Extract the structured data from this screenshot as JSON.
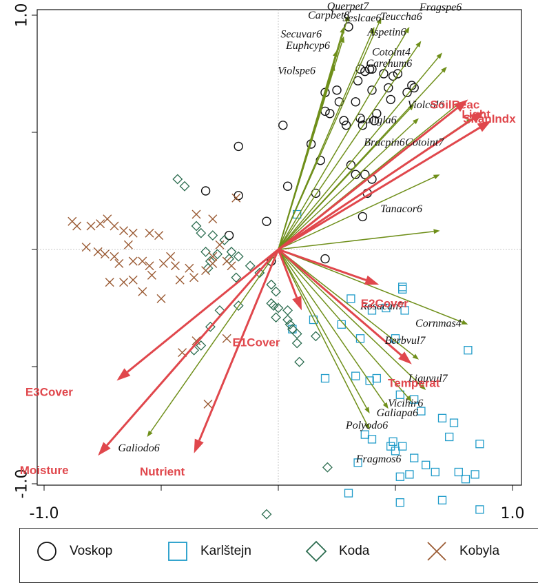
{
  "chart_data": {
    "type": "scatter",
    "xlim": [
      -1.0,
      1.0
    ],
    "ylim": [
      -1.0,
      1.0
    ],
    "x_ticks": [
      -1.0,
      1.0
    ],
    "y_ticks": [
      1.0,
      -1.0
    ],
    "x_tick_labels": [
      "-1.0",
      "1.0"
    ],
    "y_tick_labels": [
      "1.0",
      "-1.0"
    ],
    "colors": {
      "voskop": "#111111",
      "karlstejn": "#1f9bc9",
      "koda": "#2a6b4e",
      "kobyla": "#9a5a33",
      "env_arrow": "#e0474c",
      "species_arrow": "#6f8f1a"
    },
    "env_vectors": [
      {
        "label": "ShanIndx",
        "x": 0.91,
        "y": 0.55
      },
      {
        "label": "Light",
        "x": 0.88,
        "y": 0.59
      },
      {
        "label": "SoilReac",
        "x": 0.81,
        "y": 0.64
      },
      {
        "label": "E2Cover",
        "x": 0.43,
        "y": -0.15
      },
      {
        "label": "E1Cover",
        "x": 0.1,
        "y": -0.26
      },
      {
        "label": "Temperat",
        "x": 0.57,
        "y": -0.49
      },
      {
        "label": "E3Cover",
        "x": -0.69,
        "y": -0.56
      },
      {
        "label": "Moisture",
        "x": -0.77,
        "y": -0.88
      },
      {
        "label": "Nutrient",
        "x": -0.36,
        "y": -0.87
      }
    ],
    "species_vectors": [
      {
        "label": "Querpet7",
        "x": 0.3,
        "y": 1.0
      },
      {
        "label": "Fragspe6",
        "x": 0.44,
        "y": 0.99
      },
      {
        "label": "Carpbet8",
        "x": 0.28,
        "y": 0.95
      },
      {
        "label": "Seslcae6",
        "x": 0.41,
        "y": 0.95
      },
      {
        "label": "Teuccha6",
        "x": 0.56,
        "y": 0.95
      },
      {
        "label": "Secuvar6",
        "x": 0.28,
        "y": 0.91
      },
      {
        "label": "Aspetin6",
        "x": 0.61,
        "y": 0.89
      },
      {
        "label": "Euphcyp6",
        "x": 0.25,
        "y": 0.85
      },
      {
        "label": "Cotoint4",
        "x": 0.7,
        "y": 0.84
      },
      {
        "label": "Violspe6",
        "x": 0.24,
        "y": 0.79
      },
      {
        "label": "Carehum6",
        "x": 0.72,
        "y": 0.78
      },
      {
        "label": "Galigla6",
        "x": 0.58,
        "y": 0.62
      },
      {
        "label": "Violcol6",
        "x": 0.78,
        "y": 0.63
      },
      {
        "label": "Bracpin6",
        "x": 0.6,
        "y": 0.56
      },
      {
        "label": "Cotoint7",
        "x": 0.83,
        "y": 0.56
      },
      {
        "label": "Tanacor6",
        "x": 0.69,
        "y": 0.32
      },
      {
        "label": "Rosacan7",
        "x": 0.69,
        "y": 0.08
      },
      {
        "label": "Cornmas4",
        "x": 0.81,
        "y": -0.32
      },
      {
        "label": "Berbvul7",
        "x": 0.6,
        "y": -0.47
      },
      {
        "label": "Liguvul7",
        "x": 0.63,
        "y": -0.6
      },
      {
        "label": "Vicihir6",
        "x": 0.57,
        "y": -0.65
      },
      {
        "label": "Galiapa6",
        "x": 0.47,
        "y": -0.68
      },
      {
        "label": "Polyodo6",
        "x": 0.39,
        "y": -0.7
      },
      {
        "label": "Fragmos6",
        "x": 0.39,
        "y": -0.77
      },
      {
        "label": "Galiodo6",
        "x": -0.56,
        "y": -0.8
      }
    ],
    "samples": {
      "voskop": [
        [
          0.3,
          0.95
        ],
        [
          0.35,
          0.77
        ],
        [
          0.37,
          0.76
        ],
        [
          0.39,
          0.77
        ],
        [
          0.4,
          0.77
        ],
        [
          0.34,
          0.72
        ],
        [
          0.45,
          0.75
        ],
        [
          0.49,
          0.74
        ],
        [
          0.51,
          0.75
        ],
        [
          0.47,
          0.69
        ],
        [
          0.4,
          0.68
        ],
        [
          0.33,
          0.63
        ],
        [
          0.25,
          0.68
        ],
        [
          0.26,
          0.63
        ],
        [
          0.2,
          0.67
        ],
        [
          0.48,
          0.64
        ],
        [
          0.55,
          0.67
        ],
        [
          0.58,
          0.69
        ],
        [
          0.57,
          0.7
        ],
        [
          0.42,
          0.58
        ],
        [
          0.41,
          0.55
        ],
        [
          0.35,
          0.56
        ],
        [
          0.28,
          0.55
        ],
        [
          0.2,
          0.59
        ],
        [
          0.22,
          0.58
        ],
        [
          0.36,
          0.53
        ],
        [
          0.29,
          0.53
        ],
        [
          0.02,
          0.53
        ],
        [
          -0.17,
          0.44
        ],
        [
          0.14,
          0.45
        ],
        [
          0.18,
          0.38
        ],
        [
          0.31,
          0.36
        ],
        [
          0.33,
          0.32
        ],
        [
          0.37,
          0.32
        ],
        [
          0.04,
          0.27
        ],
        [
          0.16,
          0.24
        ],
        [
          0.38,
          0.24
        ],
        [
          -0.17,
          0.23
        ],
        [
          -0.31,
          0.25
        ],
        [
          0.4,
          0.3
        ],
        [
          -0.05,
          0.12
        ],
        [
          -0.21,
          0.06
        ],
        [
          0.36,
          0.14
        ],
        [
          -0.03,
          -0.05
        ],
        [
          0.2,
          -0.04
        ]
      ],
      "karlstejn": [
        [
          0.08,
          0.15
        ],
        [
          0.53,
          -0.16
        ],
        [
          0.53,
          -0.17
        ],
        [
          0.31,
          -0.21
        ],
        [
          0.46,
          -0.25
        ],
        [
          0.4,
          -0.26
        ],
        [
          0.54,
          -0.26
        ],
        [
          0.06,
          -0.34
        ],
        [
          0.15,
          -0.3
        ],
        [
          0.27,
          -0.32
        ],
        [
          0.35,
          -0.38
        ],
        [
          0.5,
          -0.38
        ],
        [
          0.81,
          -0.43
        ],
        [
          0.2,
          -0.55
        ],
        [
          0.39,
          -0.56
        ],
        [
          0.33,
          -0.54
        ],
        [
          0.42,
          -0.55
        ],
        [
          0.52,
          -0.62
        ],
        [
          0.58,
          -0.64
        ],
        [
          0.61,
          -0.69
        ],
        [
          0.7,
          -0.72
        ],
        [
          0.75,
          -0.74
        ],
        [
          0.73,
          -0.8
        ],
        [
          0.37,
          -0.79
        ],
        [
          0.4,
          -0.81
        ],
        [
          0.48,
          -0.84
        ],
        [
          0.49,
          -0.82
        ],
        [
          0.5,
          -0.86
        ],
        [
          0.53,
          -0.84
        ],
        [
          0.58,
          -0.89
        ],
        [
          0.63,
          -0.92
        ],
        [
          0.67,
          -0.95
        ],
        [
          0.34,
          -0.91
        ],
        [
          0.52,
          -0.97
        ],
        [
          0.56,
          -0.96
        ],
        [
          0.77,
          -0.95
        ],
        [
          0.8,
          -0.98
        ],
        [
          0.84,
          -0.96
        ],
        [
          0.7,
          -1.07
        ],
        [
          0.86,
          -1.11
        ],
        [
          0.52,
          -1.08
        ],
        [
          0.3,
          -1.04
        ],
        [
          0.86,
          -0.83
        ]
      ],
      "koda": [
        [
          -0.4,
          0.27
        ],
        [
          -0.35,
          0.1
        ],
        [
          -0.33,
          0.07
        ],
        [
          -0.28,
          0.06
        ],
        [
          -0.23,
          0.04
        ],
        [
          -0.2,
          -0.01
        ],
        [
          -0.17,
          -0.03
        ],
        [
          -0.31,
          -0.01
        ],
        [
          -0.26,
          -0.02
        ],
        [
          -0.21,
          -0.04
        ],
        [
          -0.29,
          -0.05
        ],
        [
          -0.3,
          -0.08
        ],
        [
          -0.18,
          -0.12
        ],
        [
          -0.12,
          -0.07
        ],
        [
          -0.08,
          -0.1
        ],
        [
          -0.03,
          -0.15
        ],
        [
          -0.01,
          -0.18
        ],
        [
          -0.03,
          -0.23
        ],
        [
          -0.02,
          -0.24
        ],
        [
          0.04,
          -0.26
        ],
        [
          0.0,
          -0.25
        ],
        [
          -0.01,
          -0.29
        ],
        [
          0.04,
          -0.3
        ],
        [
          0.05,
          -0.32
        ],
        [
          0.06,
          -0.34
        ],
        [
          0.08,
          -0.36
        ],
        [
          0.16,
          -0.37
        ],
        [
          -0.17,
          -0.24
        ],
        [
          -0.25,
          -0.26
        ],
        [
          -0.29,
          -0.33
        ],
        [
          -0.33,
          -0.41
        ],
        [
          -0.36,
          -0.43
        ],
        [
          0.08,
          -0.4
        ],
        [
          0.09,
          -0.48
        ],
        [
          0.21,
          -0.93
        ],
        [
          -0.05,
          -1.13
        ],
        [
          -0.43,
          0.3
        ]
      ],
      "kobyla": [
        [
          -0.88,
          0.12
        ],
        [
          -0.86,
          0.1
        ],
        [
          -0.8,
          0.1
        ],
        [
          -0.76,
          0.11
        ],
        [
          -0.73,
          0.13
        ],
        [
          -0.7,
          0.1
        ],
        [
          -0.66,
          0.08
        ],
        [
          -0.62,
          0.07
        ],
        [
          -0.55,
          0.07
        ],
        [
          -0.51,
          0.06
        ],
        [
          -0.82,
          0.01
        ],
        [
          -0.77,
          -0.01
        ],
        [
          -0.74,
          -0.02
        ],
        [
          -0.7,
          -0.03
        ],
        [
          -0.68,
          -0.06
        ],
        [
          -0.62,
          -0.05
        ],
        [
          -0.58,
          -0.05
        ],
        [
          -0.55,
          -0.07
        ],
        [
          -0.49,
          -0.06
        ],
        [
          -0.44,
          -0.07
        ],
        [
          -0.38,
          -0.08
        ],
        [
          -0.28,
          -0.03
        ],
        [
          -0.25,
          0.02
        ],
        [
          -0.22,
          -0.05
        ],
        [
          -0.2,
          -0.07
        ],
        [
          -0.66,
          -0.14
        ],
        [
          -0.62,
          -0.13
        ],
        [
          -0.54,
          -0.11
        ],
        [
          -0.42,
          -0.13
        ],
        [
          -0.36,
          -0.12
        ],
        [
          -0.31,
          -0.09
        ],
        [
          -0.28,
          -0.06
        ],
        [
          -0.35,
          0.15
        ],
        [
          -0.18,
          0.22
        ],
        [
          -0.28,
          0.13
        ],
        [
          -0.41,
          -0.44
        ],
        [
          -0.35,
          -0.39
        ],
        [
          -0.22,
          -0.38
        ],
        [
          -0.3,
          -0.66
        ],
        [
          -0.72,
          -0.14
        ],
        [
          -0.58,
          -0.18
        ],
        [
          -0.5,
          -0.21
        ],
        [
          -0.64,
          0.02
        ],
        [
          -0.46,
          -0.03
        ]
      ]
    }
  },
  "legend": {
    "items": [
      {
        "label": "Voskop"
      },
      {
        "label": "Karlštejn"
      },
      {
        "label": "Koda"
      },
      {
        "label": "Kobyla"
      }
    ]
  }
}
